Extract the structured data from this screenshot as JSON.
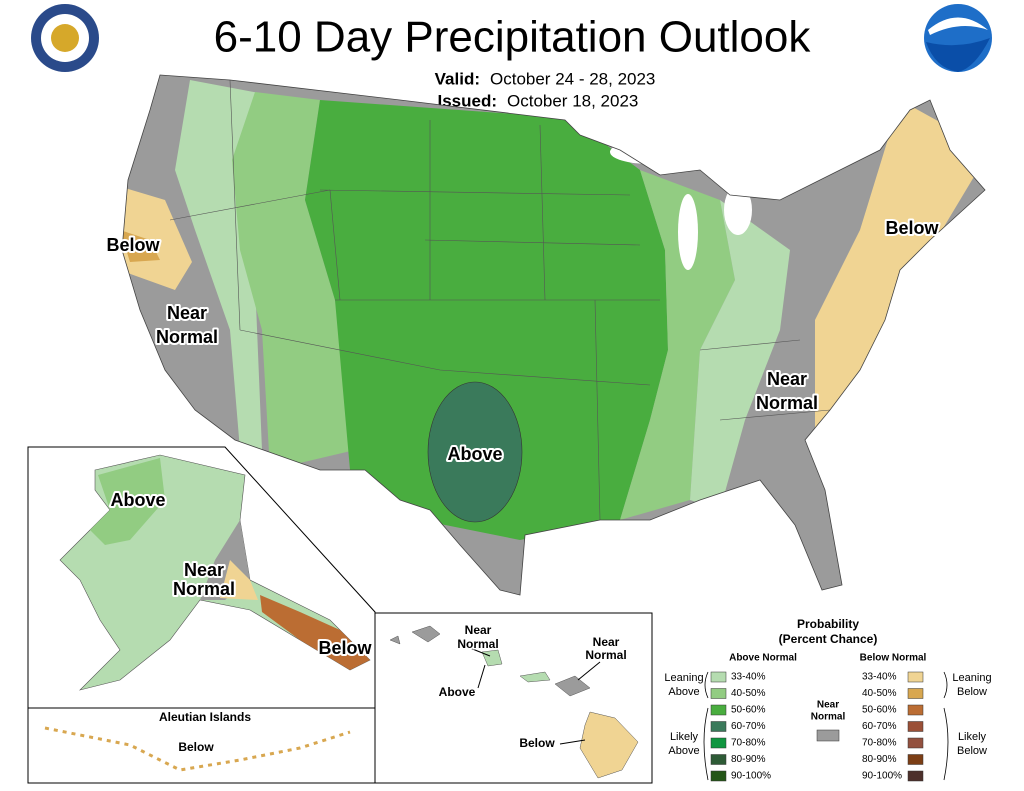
{
  "header": {
    "title": "6-10 Day Precipitation Outlook",
    "valid_label": "Valid:",
    "valid_dates": "October 24 - 28, 2023",
    "issued_label": "Issued:",
    "issued_date": "October 18, 2023"
  },
  "conus_labels": [
    {
      "lines": [
        "Below"
      ]
    },
    {
      "lines": [
        "Near",
        "Normal"
      ]
    },
    {
      "lines": [
        "Above"
      ]
    },
    {
      "lines": [
        "Near",
        "Normal"
      ]
    },
    {
      "lines": [
        "Below"
      ]
    }
  ],
  "alaska_labels": [
    {
      "lines": [
        "Above"
      ]
    },
    {
      "lines": [
        "Near",
        "Normal"
      ]
    },
    {
      "lines": [
        "Below"
      ]
    }
  ],
  "aleutian": {
    "title": "Aleutian Islands",
    "label": "Below"
  },
  "hawaii_labels": [
    {
      "lines": [
        "Near",
        "Normal"
      ]
    },
    {
      "lines": [
        "Above"
      ]
    },
    {
      "lines": [
        "Near",
        "Normal"
      ]
    },
    {
      "lines": [
        "Below"
      ]
    }
  ],
  "legend": {
    "title": [
      "Probability",
      "(Percent Chance)"
    ],
    "above_title": "Above Normal",
    "below_title": "Below Normal",
    "near_normal": {
      "lines": [
        "Near",
        "Normal"
      ],
      "color": "#9b9b9b"
    },
    "leaning_above": [
      "Leaning",
      "Above"
    ],
    "likely_above": [
      "Likely",
      "Above"
    ],
    "leaning_below": [
      "Leaning",
      "Below"
    ],
    "likely_below": [
      "Likely",
      "Below"
    ],
    "above": [
      {
        "label": "33-40%",
        "color": "#b5dcb0"
      },
      {
        "label": "40-50%",
        "color": "#92cc82"
      },
      {
        "label": "50-60%",
        "color": "#49ad3f"
      },
      {
        "label": "60-70%",
        "color": "#3a7a5b"
      },
      {
        "label": "70-80%",
        "color": "#109640"
      },
      {
        "label": "80-90%",
        "color": "#2e5b36"
      },
      {
        "label": "90-100%",
        "color": "#245617"
      }
    ],
    "below": [
      {
        "label": "33-40%",
        "color": "#f0d493"
      },
      {
        "label": "40-50%",
        "color": "#d8a750"
      },
      {
        "label": "50-60%",
        "color": "#bb6d33"
      },
      {
        "label": "60-70%",
        "color": "#9b5037"
      },
      {
        "label": "70-80%",
        "color": "#93513f"
      },
      {
        "label": "80-90%",
        "color": "#7c3e15"
      },
      {
        "label": "90-100%",
        "color": "#4d302b"
      }
    ]
  }
}
